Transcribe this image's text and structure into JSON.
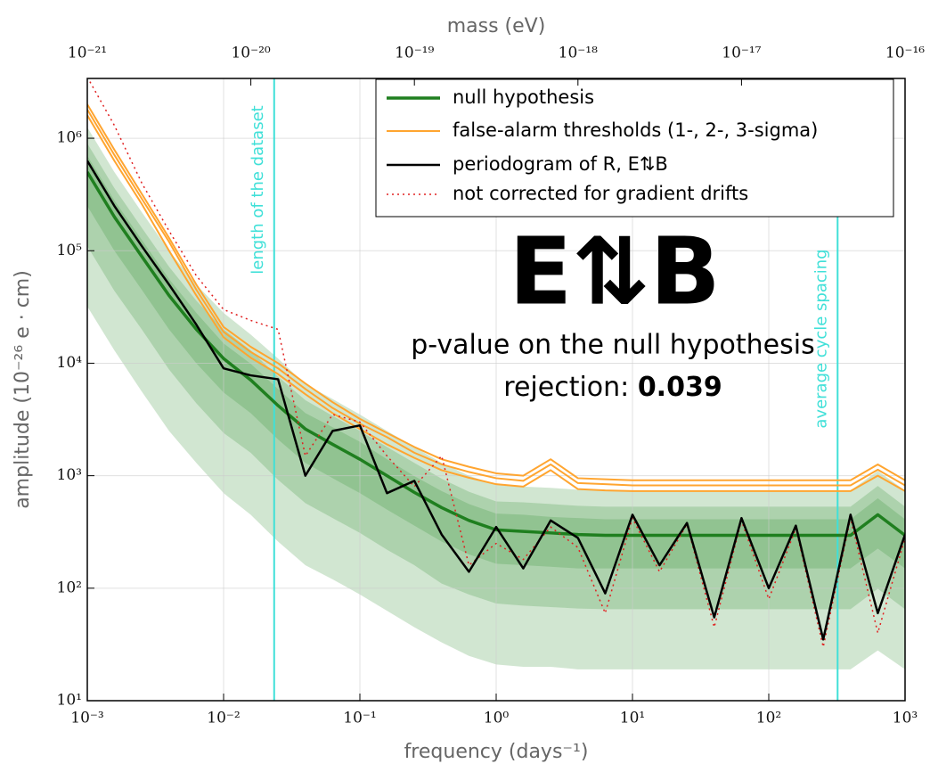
{
  "chart_data": {
    "type": "line",
    "x_scale": "log",
    "y_scale": "log",
    "xlabel": "frequency (days⁻¹)",
    "ylabel": "amplitude (10⁻²⁶ e · cm)",
    "x2label": "mass (eV)",
    "xlim": [
      0.001,
      1000
    ],
    "ylim": [
      10,
      3400000
    ],
    "x2lim": [
      1e-21,
      1e-16
    ],
    "xticks": [
      {
        "value": 0.001,
        "label": "10⁻³"
      },
      {
        "value": 0.01,
        "label": "10⁻²"
      },
      {
        "value": 0.1,
        "label": "10⁻¹"
      },
      {
        "value": 1,
        "label": "10⁰"
      },
      {
        "value": 10,
        "label": "10¹"
      },
      {
        "value": 100,
        "label": "10²"
      },
      {
        "value": 1000,
        "label": "10³"
      }
    ],
    "yticks": [
      {
        "value": 10,
        "label": "10¹"
      },
      {
        "value": 100,
        "label": "10²"
      },
      {
        "value": 1000,
        "label": "10³"
      },
      {
        "value": 10000,
        "label": "10⁴"
      },
      {
        "value": 100000,
        "label": "10⁵"
      },
      {
        "value": 1000000,
        "label": "10⁶"
      }
    ],
    "x2ticks": [
      {
        "value": 1e-21,
        "label": "10⁻²¹"
      },
      {
        "value": 1e-20,
        "label": "10⁻²⁰"
      },
      {
        "value": 1e-19,
        "label": "10⁻¹⁹"
      },
      {
        "value": 1e-18,
        "label": "10⁻¹⁸"
      },
      {
        "value": 1e-17,
        "label": "10⁻¹⁷"
      },
      {
        "value": 1e-16,
        "label": "10⁻¹⁶"
      }
    ],
    "grid": true,
    "legend": "upper right",
    "x": [
      0.001,
      0.00158,
      0.00251,
      0.00398,
      0.00631,
      0.01,
      0.0158,
      0.0251,
      0.0398,
      0.0631,
      0.1,
      0.158,
      0.251,
      0.398,
      0.631,
      1,
      1.58,
      2.51,
      3.98,
      6.31,
      10,
      15.8,
      25.1,
      39.8,
      63.1,
      100,
      158,
      251,
      398,
      631,
      1000
    ],
    "bands": [
      {
        "color": "#2e8b2e",
        "lower": [
          32000,
          13000,
          5600,
          2500,
          1300,
          700,
          450,
          260,
          160,
          120,
          88,
          63,
          45,
          33,
          25,
          21,
          20,
          20,
          19,
          19,
          19,
          19,
          19,
          19,
          19,
          19,
          19,
          19,
          19,
          28,
          19
        ],
        "upper": [
          1250000,
          500000,
          220000,
          100000,
          50000,
          28000,
          18000,
          11000,
          6500,
          4800,
          3500,
          2500,
          1800,
          1300,
          1000,
          830,
          800,
          780,
          750,
          740,
          740,
          740,
          740,
          740,
          740,
          740,
          740,
          740,
          740,
          1100,
          740
        ]
      },
      {
        "color": "#2e8b2e",
        "lower": [
          110000,
          44000,
          20000,
          8800,
          4400,
          2400,
          1600,
          920,
          570,
          420,
          310,
          220,
          160,
          110,
          88,
          73,
          70,
          68,
          66,
          65,
          65,
          65,
          65,
          65,
          65,
          65,
          65,
          65,
          65,
          99,
          65
        ],
        "upper": [
          900000,
          360000,
          160000,
          72000,
          36000,
          20000,
          13000,
          7600,
          4700,
          3400,
          2500,
          1800,
          1300,
          940,
          720,
          590,
          580,
          560,
          540,
          530,
          530,
          530,
          530,
          530,
          530,
          530,
          530,
          530,
          530,
          810,
          530
        ]
      },
      {
        "color": "#2e8b2e",
        "lower": [
          250000,
          100000,
          45000,
          20000,
          10000,
          5500,
          3600,
          2100,
          1300,
          950,
          700,
          500,
          360,
          260,
          200,
          165,
          160,
          155,
          150,
          150,
          150,
          150,
          150,
          150,
          150,
          150,
          150,
          150,
          150,
          225,
          150
        ],
        "upper": [
          700000,
          280000,
          125000,
          56000,
          28000,
          15000,
          9900,
          5900,
          3600,
          2700,
          2000,
          1400,
          990,
          730,
          560,
          460,
          450,
          430,
          420,
          410,
          410,
          410,
          410,
          410,
          410,
          410,
          410,
          410,
          410,
          630,
          410
        ]
      }
    ],
    "series": [
      {
        "name": "null hypothesis",
        "color": "#1f7f1f",
        "width": 3.5,
        "style": "solid",
        "values": [
          500000,
          200000,
          89000,
          40000,
          20000,
          11000,
          7100,
          4200,
          2600,
          1900,
          1400,
          1000,
          710,
          520,
          400,
          330,
          320,
          310,
          300,
          295,
          295,
          295,
          295,
          295,
          295,
          295,
          295,
          295,
          295,
          450,
          295
        ]
      },
      {
        "name": "false-alarm thresholds (1-, 2-, 3-sigma)",
        "color": "#ffa530",
        "width": 2,
        "style": "solid",
        "values": [
          [
            2000000,
            790000,
            320000,
            130000,
            50000,
            21000,
            14000,
            10000,
            6600,
            4500,
            3200,
            2400,
            1800,
            1400,
            1200,
            1050,
            1000,
            1400,
            950,
            930,
            910,
            910,
            910,
            910,
            910,
            910,
            910,
            910,
            910,
            1260,
            910
          ],
          [
            1800000,
            710000,
            290000,
            120000,
            45000,
            19000,
            12600,
            9000,
            5900,
            4000,
            2900,
            2200,
            1600,
            1260,
            1080,
            950,
            900,
            1260,
            860,
            840,
            820,
            820,
            820,
            820,
            820,
            820,
            820,
            820,
            820,
            1130,
            820
          ],
          [
            1600000,
            630000,
            260000,
            100000,
            40000,
            17000,
            11200,
            8000,
            5300,
            3600,
            2600,
            1900,
            1440,
            1120,
            960,
            840,
            800,
            1120,
            760,
            740,
            730,
            730,
            730,
            730,
            730,
            730,
            730,
            730,
            730,
            1000,
            730
          ]
        ]
      },
      {
        "name": "periodogram of R, E⇅B",
        "color": "#000000",
        "width": 2.5,
        "style": "solid",
        "values": [
          630000,
          250000,
          110000,
          50000,
          22000,
          9000,
          7800,
          7200,
          1000,
          2500,
          2800,
          700,
          900,
          300,
          140,
          350,
          150,
          400,
          280,
          90,
          450,
          160,
          380,
          55,
          420,
          100,
          360,
          35,
          450,
          60,
          300
        ]
      },
      {
        "name": "not corrected for gradient drifts",
        "color": "#e02020",
        "width": 1.5,
        "style": "dotted",
        "values": [
          3500000,
          1300000,
          400000,
          150000,
          60000,
          30000,
          24000,
          20000,
          1500,
          3500,
          3000,
          1500,
          800,
          1500,
          160,
          250,
          180,
          350,
          230,
          60,
          420,
          140,
          370,
          45,
          400,
          80,
          340,
          30,
          420,
          40,
          280
        ]
      }
    ],
    "vlines": [
      {
        "label": "length of the dataset",
        "x": 0.0235
      },
      {
        "label": "average cycle spacing",
        "x": 320
      }
    ],
    "vline_color": "#40e0d8",
    "annotations": {
      "symbol": "E⇅B",
      "line1": "p-value on the null hypothesis",
      "line2": "rejection: ",
      "p_value": 0.039
    }
  }
}
